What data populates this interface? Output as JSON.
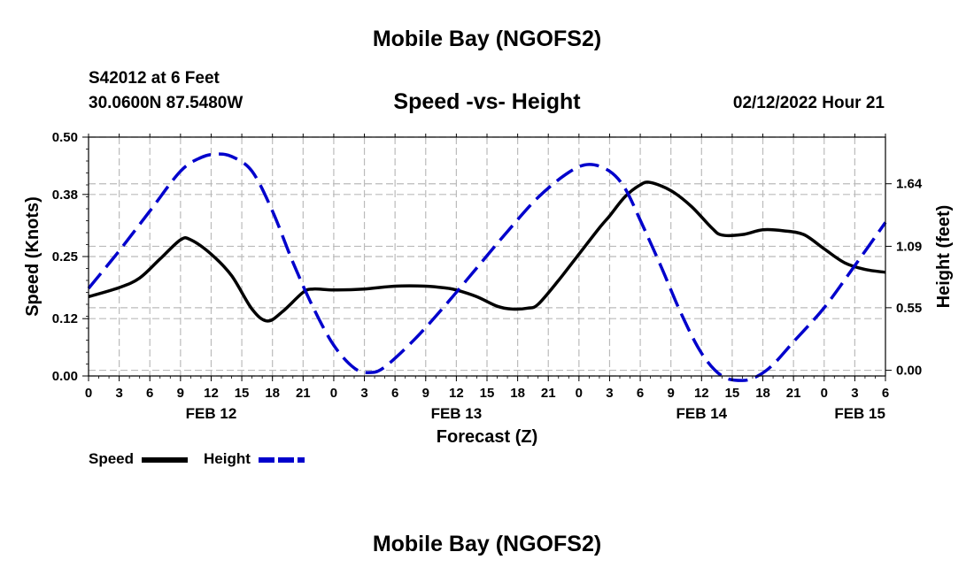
{
  "page": {
    "title": "Mobile Bay (NGOFS2)",
    "station": "S42012 at 6 Feet",
    "coords": "30.0600N  87.5480W",
    "subtitle": "Speed -vs- Height",
    "datetime": "02/12/2022 Hour 21",
    "footer_title": "Mobile Bay (NGOFS2)"
  },
  "chart_data": {
    "type": "line",
    "title": "Speed -vs- Height",
    "xlabel": "Forecast (Z)",
    "ylabel": "Speed (Knots)",
    "y2label": "Height (feet)",
    "x_range_hours": [
      0,
      78
    ],
    "ylim": [
      0,
      0.5
    ],
    "y2lim": [
      -0.05,
      2.05
    ],
    "x_tick_labels": [
      "0",
      "3",
      "6",
      "9",
      "12",
      "15",
      "18",
      "21",
      "0",
      "3",
      "6",
      "9",
      "12",
      "15",
      "18",
      "21",
      "0",
      "3",
      "6",
      "9",
      "12",
      "15",
      "18",
      "21",
      "0",
      "3",
      "6"
    ],
    "date_labels": [
      {
        "hour": 12,
        "label": "FEB 12"
      },
      {
        "hour": 36,
        "label": "FEB 13"
      },
      {
        "hour": 60,
        "label": "FEB 14"
      },
      {
        "hour": 75.5,
        "label": "FEB 15"
      }
    ],
    "y_ticks": [
      0.0,
      0.12,
      0.25,
      0.38,
      0.5
    ],
    "y_tick_labels": [
      "0.00",
      "0.12",
      "0.25",
      "0.38",
      "0.50"
    ],
    "y2_ticks": [
      0.0,
      0.55,
      1.09,
      1.64
    ],
    "y2_tick_labels": [
      "0.00",
      "0.55",
      "1.09",
      "1.64"
    ],
    "grid": true,
    "series": [
      {
        "name": "Speed",
        "axis": "left",
        "color": "#000000",
        "dash": "solid",
        "x": [
          0,
          3,
          5,
          7,
          9,
          10,
          12,
          14,
          16,
          17.5,
          19,
          21,
          22,
          24,
          27,
          30,
          33,
          35,
          36,
          38,
          40,
          41.5,
          43,
          44,
          46,
          48,
          50,
          51,
          52.5,
          54,
          55,
          57,
          59,
          61,
          62,
          64,
          66,
          68,
          70,
          72,
          74,
          76,
          78
        ],
        "values": [
          0.166,
          0.185,
          0.205,
          0.245,
          0.285,
          0.285,
          0.255,
          0.21,
          0.14,
          0.115,
          0.135,
          0.175,
          0.182,
          0.18,
          0.182,
          0.188,
          0.188,
          0.184,
          0.18,
          0.166,
          0.146,
          0.14,
          0.142,
          0.15,
          0.2,
          0.255,
          0.31,
          0.335,
          0.375,
          0.4,
          0.405,
          0.388,
          0.355,
          0.31,
          0.295,
          0.296,
          0.306,
          0.304,
          0.296,
          0.266,
          0.237,
          0.223,
          0.217
        ]
      },
      {
        "name": "Height",
        "axis": "right",
        "color": "#0000cc",
        "dash": "dashed",
        "x": [
          0,
          3,
          6,
          9,
          11,
          12.5,
          14,
          16,
          18,
          20,
          22,
          24,
          26,
          27.5,
          29,
          32,
          35,
          38,
          41,
          44,
          47,
          49,
          51,
          52.5,
          54,
          56,
          58,
          60,
          62,
          64,
          65.5,
          67,
          69,
          72,
          75,
          78
        ],
        "values": [
          0.72,
          1.05,
          1.4,
          1.75,
          1.87,
          1.9,
          1.88,
          1.75,
          1.4,
          0.95,
          0.55,
          0.22,
          0.02,
          -0.02,
          0.03,
          0.28,
          0.58,
          0.9,
          1.22,
          1.52,
          1.74,
          1.81,
          1.75,
          1.6,
          1.32,
          0.92,
          0.5,
          0.15,
          -0.05,
          -0.09,
          -0.05,
          0.05,
          0.25,
          0.55,
          0.92,
          1.3
        ]
      }
    ],
    "legend": [
      {
        "label": "Speed",
        "color": "#000000",
        "dash": "solid"
      },
      {
        "label": "Height",
        "color": "#0000cc",
        "dash": "dashed"
      }
    ]
  }
}
